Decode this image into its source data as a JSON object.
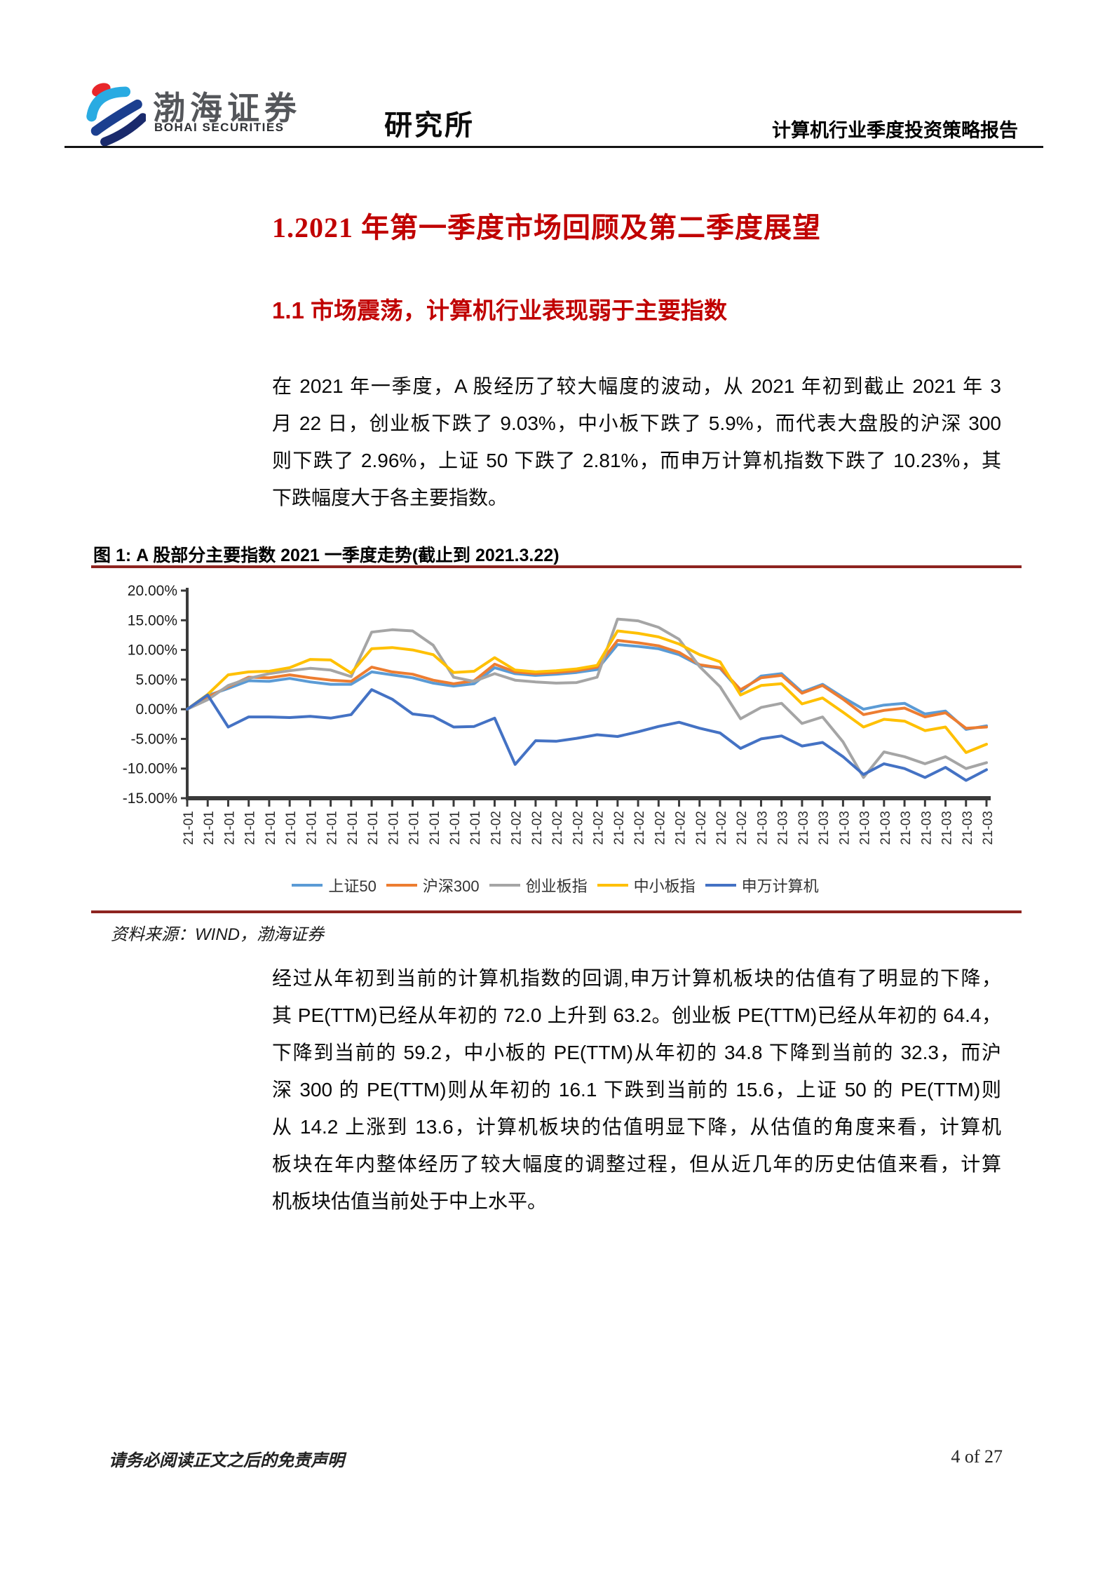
{
  "header": {
    "brand_cn": "渤海证券",
    "brand_en": "BOHAI SECURITIES",
    "dept": "研究所",
    "report_title": "计算机行业季度投资策略报告"
  },
  "section": {
    "h1": "1.2021 年第一季度市场回顾及第二季度展望",
    "h2": "1.1 市场震荡，计算机行业表现弱于主要指数"
  },
  "para1": {
    "lines": [
      "在 2021 年一季度，A 股经历了较大幅度的波动，从 2021 年初到截止 2021 年 3",
      "月 22 日，创业板下跌了 9.03%，中小板下跌了 5.9%，而代表大盘股的沪深 300",
      "则下跌了 2.96%，上证 50 下跌了 2.81%，而申万计算机指数下跌了 10.23%，其",
      "下跌幅度大于各主要指数。"
    ]
  },
  "figure": {
    "caption": "图 1: A 股部分主要指数 2021 一季度走势(截止到 2021.3.22)",
    "source": "资料来源：WIND，渤海证券"
  },
  "chart_data": {
    "type": "line",
    "title": "",
    "xlabel": "",
    "ylabel": "",
    "ylim": [
      -15,
      20
    ],
    "grid": false,
    "legend_position": "bottom",
    "y_ticks": [
      "20.00%",
      "15.00%",
      "10.00%",
      "5.00%",
      "0.00%",
      "-5.00%",
      "-10.00%",
      "-15.00%"
    ],
    "x_labels": [
      "21-01",
      "21-01",
      "21-01",
      "21-01",
      "21-01",
      "21-01",
      "21-01",
      "21-01",
      "21-01",
      "21-01",
      "21-01",
      "21-01",
      "21-01",
      "21-01",
      "21-01",
      "21-02",
      "21-02",
      "21-02",
      "21-02",
      "21-02",
      "21-02",
      "21-02",
      "21-02",
      "21-02",
      "21-02",
      "21-02",
      "21-02",
      "21-02",
      "21-03",
      "21-03",
      "21-03",
      "21-03",
      "21-03",
      "21-03",
      "21-03",
      "21-03",
      "21-03",
      "21-03",
      "21-03",
      "21-03"
    ],
    "series": [
      {
        "name": "上证50",
        "color": "#5B9BD5",
        "values": [
          0,
          2.3,
          3.5,
          4.8,
          4.7,
          5.2,
          4.6,
          4.2,
          4.2,
          6.3,
          5.8,
          5.3,
          4.4,
          3.9,
          4.3,
          7.0,
          6.0,
          5.7,
          5.9,
          6.2,
          6.7,
          10.9,
          10.6,
          10.2,
          9.2,
          7.4,
          6.9,
          3.0,
          5.6,
          6.0,
          2.9,
          4.2,
          2.0,
          0.0,
          0.7,
          1.0,
          -0.8,
          -0.3,
          -3.4,
          -2.8
        ]
      },
      {
        "name": "沪深300",
        "color": "#ED7D31",
        "values": [
          0,
          2.0,
          3.8,
          5.4,
          5.3,
          5.8,
          5.3,
          4.9,
          4.7,
          7.1,
          6.3,
          5.9,
          4.9,
          4.3,
          4.8,
          7.6,
          6.3,
          6.0,
          6.2,
          6.5,
          7.1,
          11.6,
          11.2,
          10.7,
          9.6,
          7.5,
          7.0,
          3.3,
          5.3,
          5.7,
          2.7,
          4.0,
          1.7,
          -0.9,
          -0.2,
          0.2,
          -1.3,
          -0.6,
          -3.2,
          -3.0
        ]
      },
      {
        "name": "创业板指",
        "color": "#A5A5A5",
        "values": [
          0,
          1.6,
          4.0,
          5.2,
          6.0,
          6.5,
          6.9,
          6.6,
          5.5,
          13.0,
          13.4,
          13.2,
          10.8,
          5.4,
          4.7,
          6.0,
          4.9,
          4.6,
          4.4,
          4.5,
          5.4,
          15.2,
          14.9,
          13.8,
          11.8,
          7.2,
          3.8,
          -1.6,
          0.3,
          1.0,
          -2.4,
          -1.3,
          -5.5,
          -11.5,
          -7.2,
          -8.0,
          -9.2,
          -8.0,
          -10.0,
          -9.0
        ]
      },
      {
        "name": "中小板指",
        "color": "#FFC000",
        "values": [
          0,
          2.5,
          5.8,
          6.3,
          6.4,
          7.0,
          8.4,
          8.3,
          6.1,
          10.2,
          10.4,
          10.0,
          9.2,
          6.2,
          6.4,
          8.7,
          6.6,
          6.3,
          6.5,
          6.8,
          7.4,
          13.2,
          12.8,
          12.2,
          11.0,
          9.2,
          8.0,
          2.4,
          4.0,
          4.3,
          0.9,
          1.9,
          -0.5,
          -3.0,
          -1.7,
          -2.0,
          -3.6,
          -3.0,
          -7.3,
          -5.9
        ]
      },
      {
        "name": "申万计算机",
        "color": "#4472C4",
        "values": [
          0,
          2.4,
          -3.0,
          -1.3,
          -1.3,
          -1.4,
          -1.2,
          -1.5,
          -0.9,
          3.3,
          1.7,
          -0.8,
          -1.2,
          -3.0,
          -2.9,
          -1.5,
          -9.3,
          -5.3,
          -5.4,
          -4.9,
          -4.3,
          -4.6,
          -3.8,
          -2.9,
          -2.2,
          -3.2,
          -4.0,
          -6.6,
          -5.0,
          -4.5,
          -6.2,
          -5.6,
          -8.0,
          -11.0,
          -9.2,
          -10.0,
          -11.5,
          -9.8,
          -12.0,
          -10.2
        ]
      }
    ]
  },
  "para2": {
    "lines": [
      "经过从年初到当前的计算机指数的回调,申万计算机板块的估值有了明显的下降，",
      "其 PE(TTM)已经从年初的 72.0 上升到 63.2。创业板 PE(TTM)已经从年初的 64.4，",
      "下降到当前的 59.2，中小板的 PE(TTM)从年初的 34.8 下降到当前的 32.3，而沪",
      "深 300 的 PE(TTM)则从年初的 16.1 下跌到当前的 15.6，上证 50 的 PE(TTM)则",
      "从 14.2 上涨到 13.6，计算机板块的估值明显下降，从估值的角度来看，计算机",
      "板块在年内整体经历了较大幅度的调整过程，但从近几年的历史估值来看，计算",
      "机板块估值当前处于中上水平。"
    ]
  },
  "footer": {
    "disclaimer": "请务必阅读正文之后的免责声明",
    "page": "4 of 27"
  },
  "colors": {
    "heading_red": "#c00000",
    "rule_red": "#8e2420",
    "header_rule": "#141414"
  }
}
